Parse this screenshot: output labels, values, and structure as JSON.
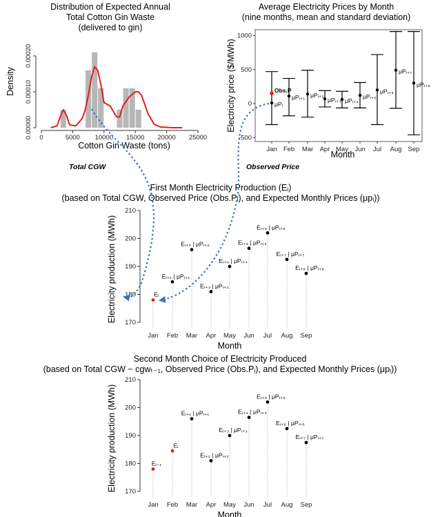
{
  "charts": {
    "hist": {
      "title": [
        "Distribution of Expected Annual",
        "Total Cotton Gin Waste",
        "(delivered to gin)"
      ],
      "xlabel": "Cotton Gin Waste (tons)",
      "ylabel": "Density",
      "xticks": [
        "0",
        "5000",
        "10000",
        "15000",
        "20000",
        "25000"
      ],
      "yticks": [
        "0.00000",
        "0.00010",
        "0.00020"
      ],
      "bottom_label": "Total CGW"
    },
    "price": {
      "title": [
        "Average Electricity Prices by Month",
        "(nine months, mean and standard deviation)"
      ],
      "ylabel": "Electricity price ($/MWh)",
      "xlabel": "Month",
      "yticks": [
        "1000",
        "500",
        "0",
        "-500"
      ],
      "obs_label": "Obs.P",
      "bottom_label": "Observed Price"
    },
    "first": {
      "title": [
        "First Month Electricity Production (Eᵢ)",
        "(based on Total CGW, Observed Price (Obs.Pᵢ), and Expected Monthly Prices (μpᵢ))"
      ],
      "ylabel": "Electricity production (MWh)",
      "xlabel": "Month",
      "yticks": [
        "210",
        "200",
        "190",
        "180",
        "170"
      ]
    },
    "second": {
      "title": [
        "Second Month Choice of Electricity Produced",
        "(based on Total CGW − cgwₜ₋₁, Observed Price (Obs.Pᵢ), and Expected Monthly Prices (μpᵢ))"
      ],
      "ylabel": "Electricity production (MWh)",
      "xlabel": "Month",
      "yticks": [
        "210",
        "200",
        "190",
        "180",
        "170"
      ]
    }
  },
  "chart_data": [
    {
      "type": "bar",
      "title": "Distribution of Expected Annual Total Cotton Gin Waste (delivered to gin)",
      "xlabel": "Cotton Gin Waste (tons)",
      "ylabel": "Density",
      "xlim": [
        0,
        25000
      ],
      "ylim": [
        0,
        0.00025
      ],
      "bins": [
        {
          "x0": 3000,
          "x1": 4000,
          "density": 5e-05
        },
        {
          "x0": 7000,
          "x1": 8000,
          "density": 0.00016
        },
        {
          "x0": 8000,
          "x1": 9000,
          "density": 0.00021
        },
        {
          "x0": 9000,
          "x1": 10000,
          "density": 0.00011
        },
        {
          "x0": 12000,
          "x1": 13000,
          "density": 5e-05
        },
        {
          "x0": 13000,
          "x1": 14000,
          "density": 0.00011
        },
        {
          "x0": 14000,
          "x1": 15000,
          "density": 0.00011
        },
        {
          "x0": 15000,
          "x1": 16000,
          "density": 5e-05
        }
      ],
      "density_curve": {
        "color": "#e11d1d",
        "x": [
          1500,
          2500,
          3000,
          3500,
          4000,
          4500,
          5500,
          6500,
          7000,
          7500,
          8000,
          8500,
          9000,
          9500,
          10000,
          11000,
          12000,
          12500,
          13000,
          14000,
          15000,
          15500,
          16000,
          17000,
          18000,
          19000,
          21000,
          22000,
          22500
        ],
        "y": [
          0,
          5e-06,
          3e-05,
          5e-05,
          3.5e-05,
          8e-06,
          5e-06,
          2.5e-05,
          5e-05,
          9e-05,
          0.00014,
          0.00017,
          0.00016,
          0.00012,
          7e-05,
          6e-05,
          3e-05,
          3e-05,
          6e-05,
          8.5e-05,
          0.0001,
          0.0001,
          9e-05,
          4e-05,
          1e-05,
          2e-06,
          0,
          0,
          0
        ]
      }
    },
    {
      "type": "scatter",
      "title": "Average Electricity Prices by Month (nine months, mean and standard deviation)",
      "xlabel": "Month",
      "ylabel": "Electricity price ($/MWh)",
      "ylim": [
        -500,
        1000
      ],
      "categories": [
        "Jan",
        "Feb",
        "Mar",
        "Apr",
        "May",
        "Jun",
        "Jul",
        "Aug",
        "Sep"
      ],
      "mean": [
        10,
        110,
        140,
        70,
        60,
        120,
        200,
        490,
        300
      ],
      "low": [
        -310,
        -180,
        -200,
        -50,
        -65,
        -65,
        -310,
        -70,
        -460
      ],
      "high": [
        470,
        370,
        490,
        190,
        180,
        310,
        720,
        1060,
        1060
      ],
      "obs_price": {
        "month": "Jan",
        "value": 150,
        "color": "#e11d1d"
      },
      "point_labels": [
        "μPᵢ",
        "μPᵢ₊₁",
        "μPᵢ₊₂",
        "μPᵢ₊₃",
        "μPᵢ₊₄",
        "μPᵢ₊₅",
        "μPᵢ₊₆",
        "μPᵢ₊₇",
        "μPᵢ₊₈"
      ]
    },
    {
      "type": "scatter",
      "title": "First Month Electricity Production (Eᵢ)",
      "xlabel": "Month",
      "ylabel": "Electricity production (MWh)",
      "ylim": [
        170,
        210
      ],
      "categories": [
        "Jan",
        "Feb",
        "Mar",
        "Apr",
        "May",
        "Jun",
        "Jul",
        "Aug",
        "Sep"
      ],
      "values": [
        178,
        184.5,
        196,
        181,
        190,
        196.5,
        202,
        192.5,
        187.5
      ],
      "highlight": {
        "month": "Jan",
        "color": "#e11d1d"
      },
      "point_labels": [
        "Eᵢ",
        "Eᵢ₊₁ | μPᵢ₊₁",
        "Eᵢ₊₂ | μPᵢ₊₂",
        "Eᵢ₊₃ | μPᵢ₊₃",
        "Eᵢ₊₄ | μPᵢ₊₄",
        "Eᵢ₊₅ | μPᵢ₊₅",
        "Eᵢ₊₆ | μPᵢ₊₆",
        "Eᵢ₊₇ | μPᵢ₊₇",
        "Eᵢ₊₈ | μPᵢ₊₈"
      ]
    },
    {
      "type": "scatter",
      "title": "Second Month Choice of Electricity Produced",
      "xlabel": "Month",
      "ylabel": "Electricity production (MWh)",
      "ylim": [
        170,
        210
      ],
      "categories": [
        "Jan",
        "Feb",
        "Mar",
        "Apr",
        "May",
        "Jun",
        "Jul",
        "Aug",
        "Sep"
      ],
      "values": [
        178,
        184.5,
        196,
        181,
        190,
        196.5,
        202,
        192.5,
        187.5
      ],
      "highlight_months": [
        "Jan",
        "Feb"
      ],
      "highlight_color": "#e11d1d",
      "point_labels": [
        "Eᵢ₋₁",
        "Eᵢ",
        "Eᵢ₊₁ | μPᵢ₊₁",
        "Eᵢ₊₂ | μPᵢ₊₂",
        "Eᵢ₊₃ | μPᵢ₊₃",
        "Eᵢ₊₄ | μPᵢ₊₄",
        "Eᵢ₊₅ | μPᵢ₊₅",
        "Eᵢ₊₆ | μPᵢ₊₆",
        "Eᵢ₊₇ | μPᵢ₊₇"
      ]
    }
  ],
  "colors": {
    "hist_bar": "#b7b7b7",
    "red": "#e11d1d",
    "arrow": "#3a6fc4",
    "grid": "#b5b5b5"
  }
}
